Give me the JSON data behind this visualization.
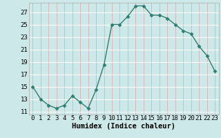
{
  "x": [
    0,
    1,
    2,
    3,
    4,
    5,
    6,
    7,
    8,
    9,
    10,
    11,
    12,
    13,
    14,
    15,
    16,
    17,
    18,
    19,
    20,
    21,
    22,
    23
  ],
  "y": [
    15,
    13,
    12,
    11.5,
    12,
    13.5,
    12.5,
    11.5,
    14.5,
    18.5,
    25,
    25,
    26.3,
    28,
    28,
    26.5,
    26.5,
    26,
    25,
    24,
    23.5,
    21.5,
    20,
    17.5
  ],
  "line_color": "#2e7d6e",
  "marker": "D",
  "marker_size": 2.5,
  "bg_color": "#cde8e8",
  "grid_color_h": "#ffffff",
  "grid_color_v": "#d4b8b8",
  "xlabel": "Humidex (Indice chaleur)",
  "xlim": [
    -0.5,
    23.5
  ],
  "ylim": [
    10.5,
    28.5
  ],
  "yticks": [
    11,
    13,
    15,
    17,
    19,
    21,
    23,
    25,
    27
  ],
  "xticks": [
    0,
    1,
    2,
    3,
    4,
    5,
    6,
    7,
    8,
    9,
    10,
    11,
    12,
    13,
    14,
    15,
    16,
    17,
    18,
    19,
    20,
    21,
    22,
    23
  ],
  "xlabel_fontsize": 7.5,
  "tick_fontsize": 6.5,
  "line_width": 1.0
}
